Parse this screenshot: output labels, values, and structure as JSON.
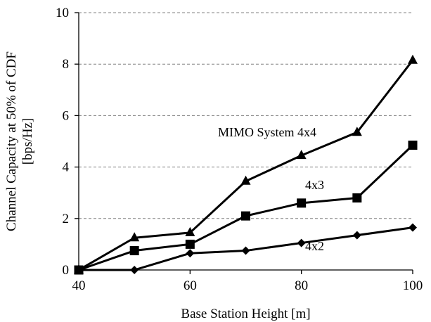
{
  "chart_data": {
    "type": "line",
    "xlabel": "Base Station Height [m]",
    "ylabel_lines": [
      "Channel Capacity at 50% of CDF",
      "[bps/Hz]"
    ],
    "xlim": [
      40,
      100
    ],
    "ylim": [
      0,
      10
    ],
    "xticks": [
      40,
      60,
      80,
      100
    ],
    "yticks": [
      0,
      2,
      4,
      6,
      8,
      10
    ],
    "grid": "horizontal-dashed",
    "x": [
      40,
      50,
      60,
      70,
      80,
      90,
      100
    ],
    "series": [
      {
        "label": "MIMO System 4x4",
        "marker": "triangle",
        "values": [
          0,
          1.25,
          1.45,
          3.45,
          4.45,
          5.35,
          8.15
        ]
      },
      {
        "label": "4x3",
        "marker": "square",
        "values": [
          0,
          0.75,
          1.0,
          2.1,
          2.6,
          2.8,
          4.85
        ]
      },
      {
        "label": "4x2",
        "marker": "diamond",
        "values": [
          0,
          0,
          0.65,
          0.75,
          1.05,
          1.35,
          1.65
        ]
      }
    ]
  }
}
